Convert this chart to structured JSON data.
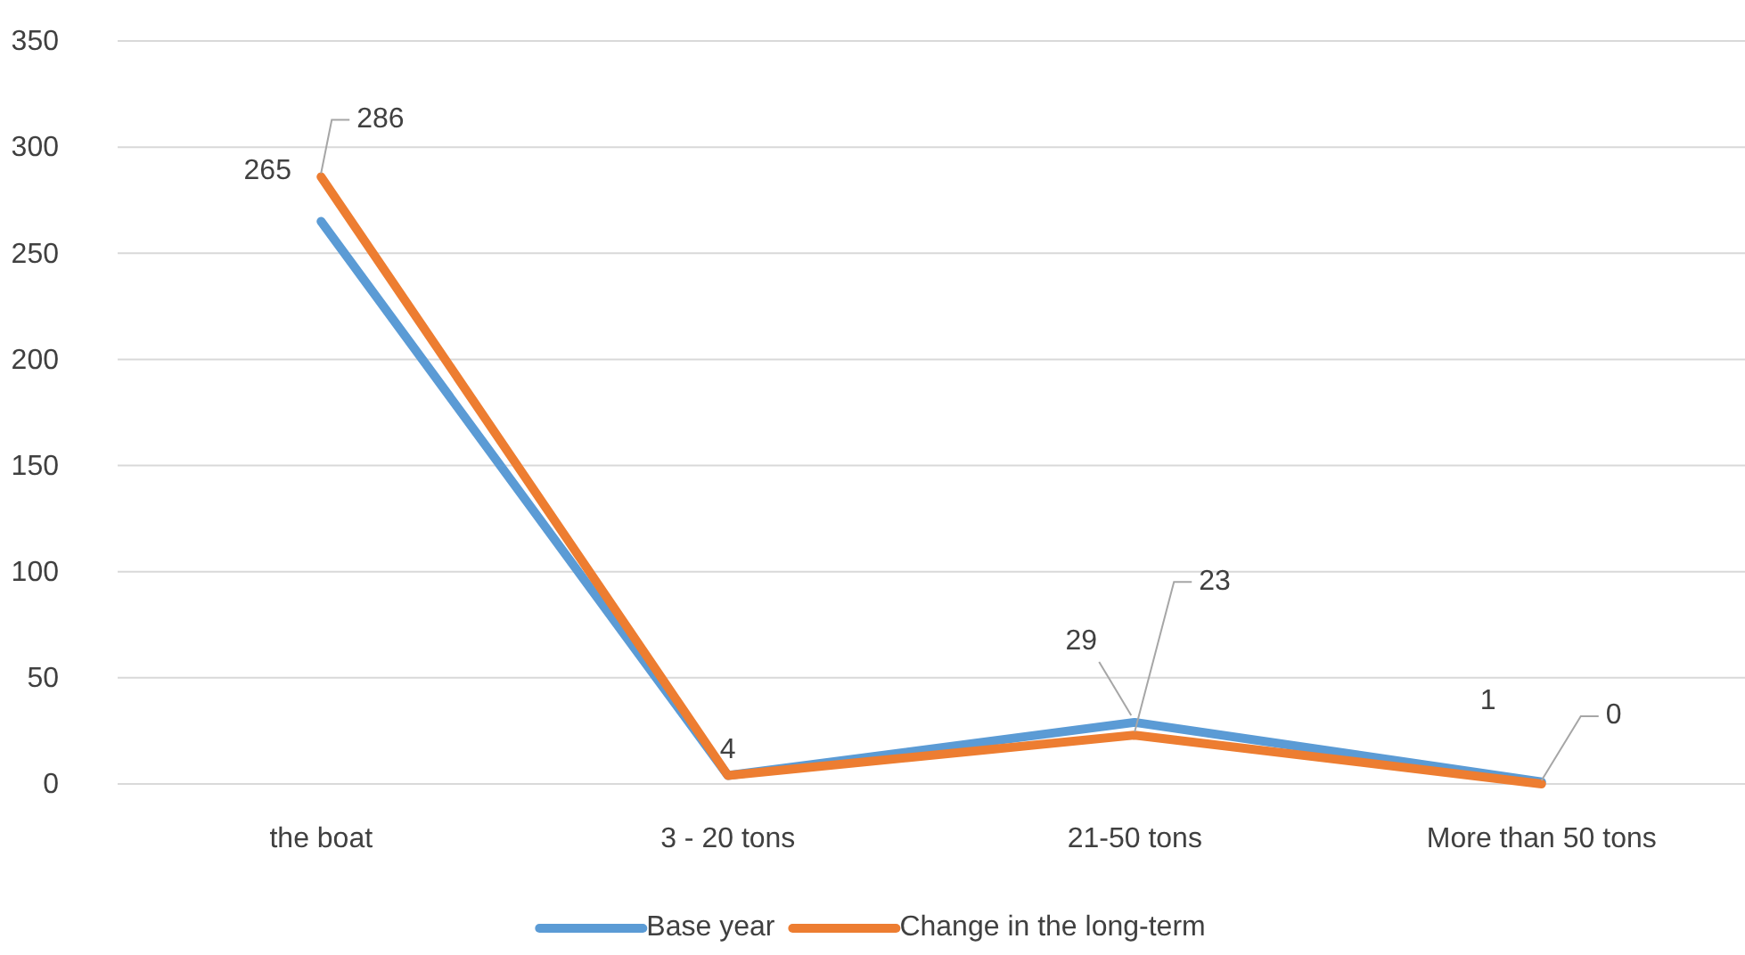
{
  "chart_data": {
    "type": "line",
    "categories": [
      "the boat",
      "3 - 20 tons",
      "21-50 tons",
      "More than 50 tons"
    ],
    "series": [
      {
        "name": "Base year",
        "color": "#5b9bd5",
        "values": [
          265,
          4,
          29,
          1
        ],
        "value_labels": [
          "265",
          "4",
          "29",
          "1"
        ]
      },
      {
        "name": "Change in the long-term",
        "color": "#ed7d31",
        "values": [
          286,
          4,
          23,
          0
        ],
        "value_labels": [
          "286",
          null,
          "23",
          "0"
        ]
      }
    ],
    "ylim": [
      0,
      350
    ],
    "yticks": [
      0,
      50,
      100,
      150,
      200,
      250,
      300,
      350
    ],
    "grid": "y",
    "legend": "bottom",
    "marker": "none",
    "line_style": "solid"
  }
}
